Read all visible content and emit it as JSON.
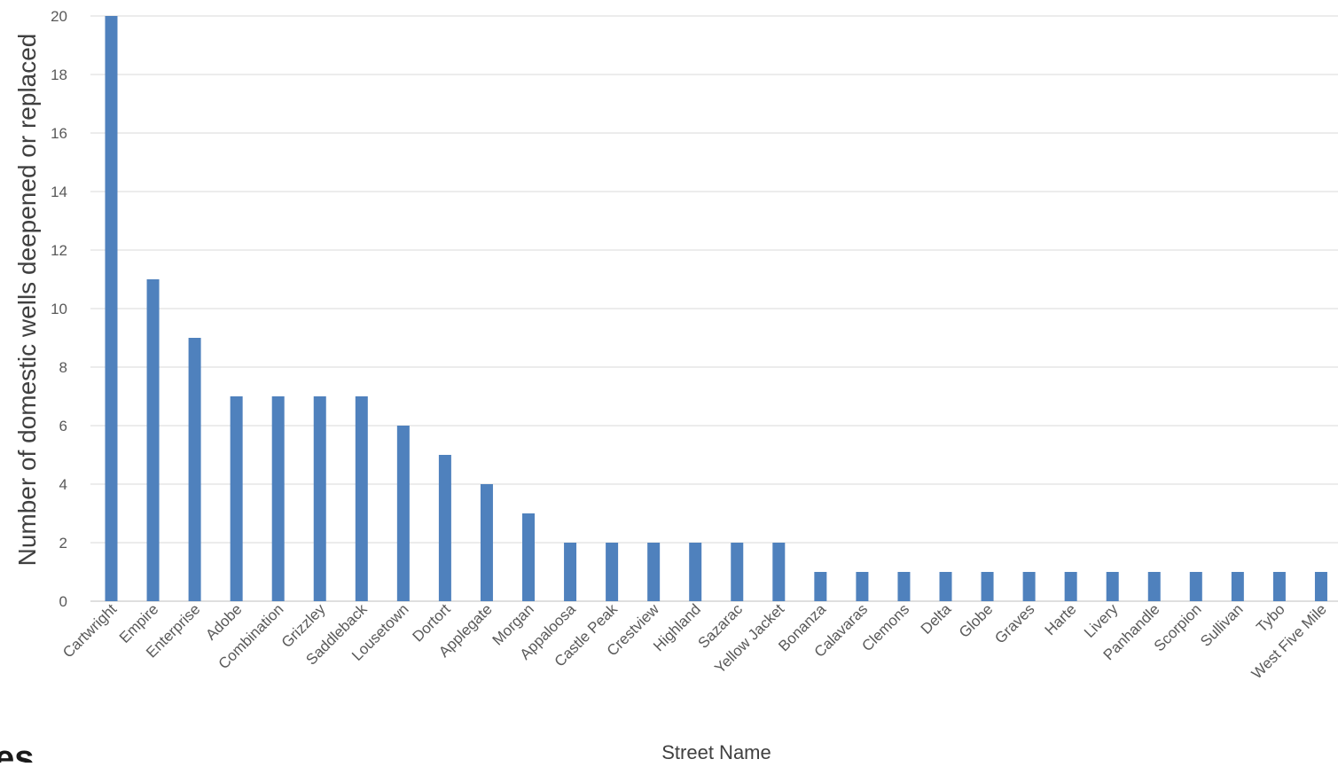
{
  "chart_data": {
    "type": "bar",
    "title": "",
    "xlabel": "Street Name",
    "ylabel": "Number of domestic wells deepened or replaced",
    "ylim": [
      0,
      20
    ],
    "yticks": [
      0,
      2,
      4,
      6,
      8,
      10,
      12,
      14,
      16,
      18,
      20
    ],
    "grid": true,
    "legend": "none",
    "bar_color": "#4f81bd",
    "categories": [
      "Cartwright",
      "Empire",
      "Enterprise",
      "Adobe",
      "Combination",
      "Grizzley",
      "Saddleback",
      "Lousetown",
      "Dortort",
      "Applegate",
      "Morgan",
      "Appaloosa",
      "Castle Peak",
      "Crestview",
      "Highland",
      "Sazarac",
      "Yellow Jacket",
      "Bonanza",
      "Calavaras",
      "Clemons",
      "Delta",
      "Globe",
      "Graves",
      "Harte",
      "Livery",
      "Panhandle",
      "Scorpion",
      "Sullivan",
      "Tybo",
      "West Five Mile"
    ],
    "values": [
      20,
      11,
      9,
      7,
      7,
      7,
      7,
      6,
      5,
      4,
      3,
      2,
      2,
      2,
      2,
      2,
      2,
      1,
      1,
      1,
      1,
      1,
      1,
      1,
      1,
      1,
      1,
      1,
      1,
      1
    ]
  },
  "edge_fragment": "es"
}
